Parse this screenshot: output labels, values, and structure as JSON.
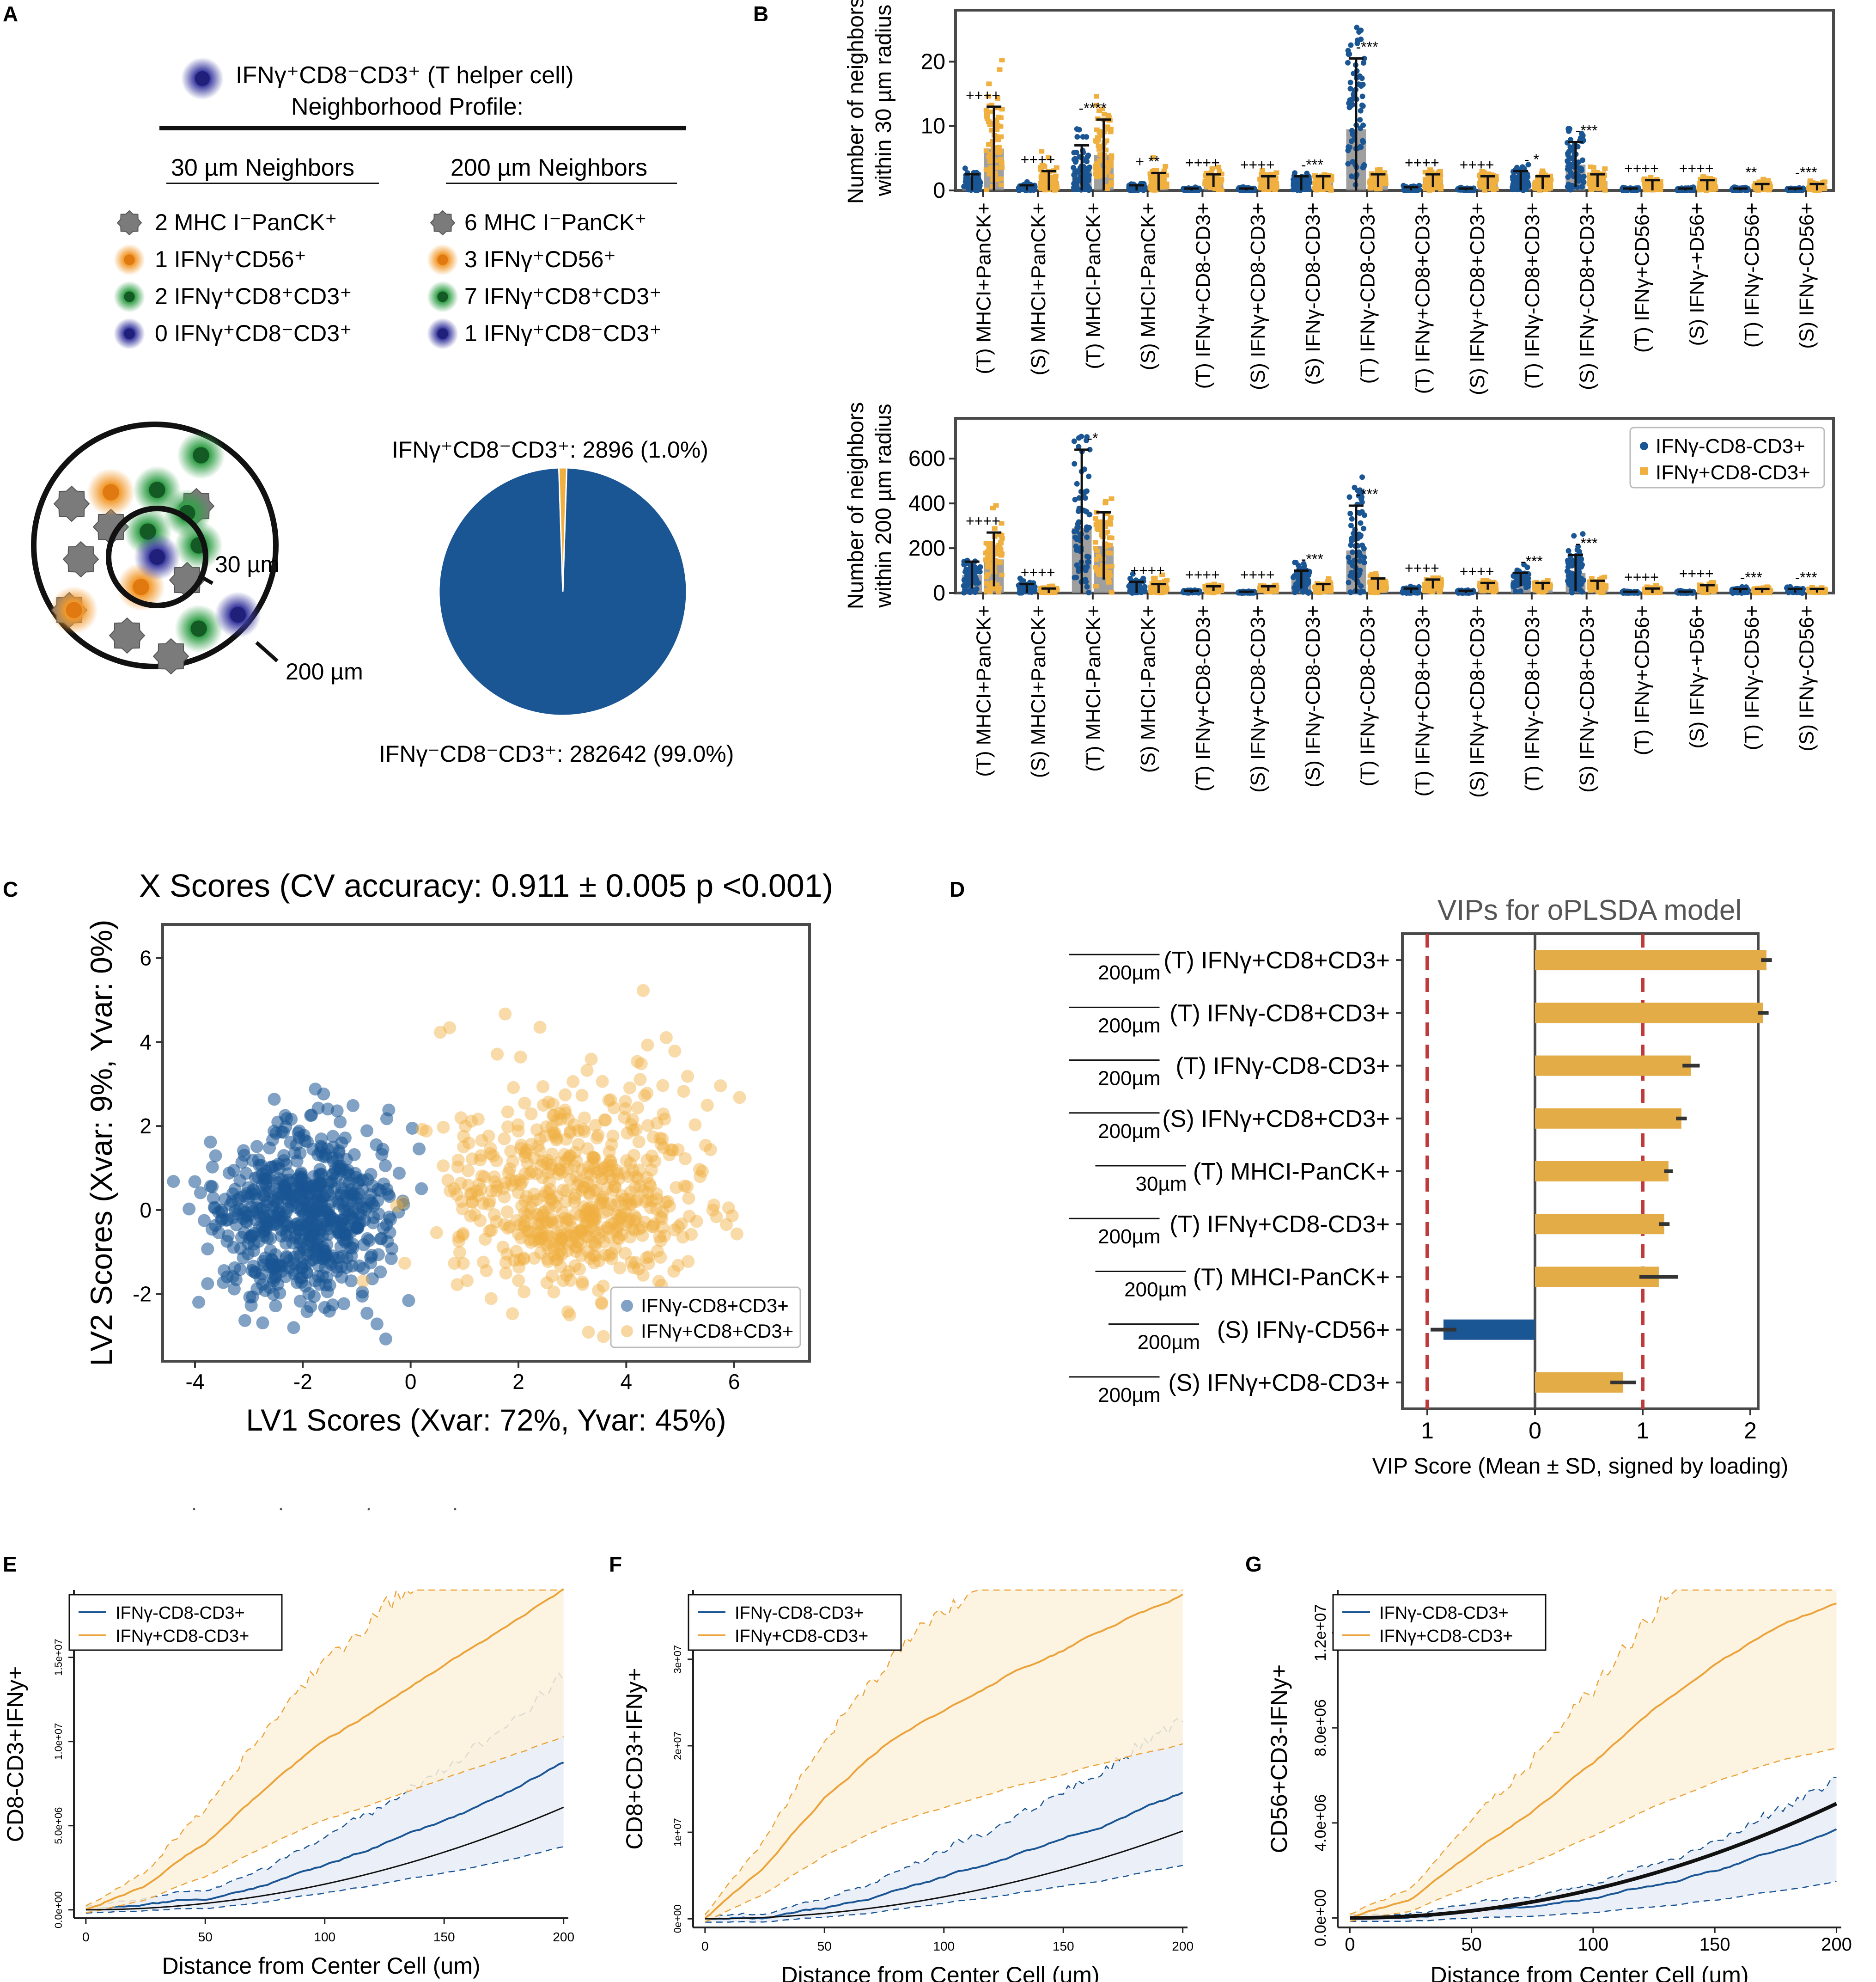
{
  "colors": {
    "blue": "#1a5594",
    "orange": "#f0b040",
    "cell_gray": "#7a7a7a",
    "cell_orange": "#f29a2e",
    "cell_green": "#34a04a",
    "cell_purple": "#3a3aa0",
    "red_dash": "#c0393b",
    "frame": "#4a4a4a",
    "bar_gray": "#8e8e8e"
  },
  "panel_letters": [
    "A",
    "B",
    "C",
    "D",
    "E",
    "F",
    "G"
  ],
  "panel_A": {
    "title_line1": "IFNγ⁺CD8⁻CD3⁺ (T helper cell)",
    "title_line2": "Neighborhood Profile:",
    "col1_header": "30 µm Neighbors",
    "col2_header": "200 µm Neighbors",
    "col1_items": [
      "2 MHC I⁻PanCK⁺",
      "1 IFNγ⁺CD56⁺",
      "2 IFNγ⁺CD8⁺CD3⁺",
      "0 IFNγ⁺CD8⁻CD3⁺"
    ],
    "col2_items": [
      "6 MHC I⁻PanCK⁺",
      "3 IFNγ⁺CD56⁺",
      "7 IFNγ⁺CD8⁺CD3⁺",
      "1 IFNγ⁺CD8⁻CD3⁺"
    ],
    "icons": [
      "gray-cell-icon",
      "orange-cell-icon",
      "green-cell-icon",
      "purple-cell-icon"
    ],
    "radius_inner_label": "30 µm",
    "radius_outer_label": "200 µm",
    "pie_label_top": "IFNγ⁺CD8⁻CD3⁺: 2896 (1.0%)",
    "pie_label_bottom": "IFNγ⁻CD8⁻CD3⁺: 282642 (99.0%)",
    "pie_values": [
      2896,
      282642
    ]
  },
  "chart_data": [
    {
      "type": "bar",
      "panel": "B-top",
      "ylabel": "Number of neighbors within 30 µm radius",
      "ylim": [
        0,
        28
      ],
      "yticks": [
        "0",
        "10",
        "20"
      ],
      "categories": [
        "(T) MHCI+PanCK+",
        "(S) MHCI+PanCK+",
        "(T) MHCI-PanCK+",
        "(S) MHCI-PanCK+",
        "(T) IFNγ+CD8-CD3+",
        "(S) IFNγ+CD8-CD3+",
        "(S) IFNγ-CD8-CD3+",
        "(T) IFNγ-CD8-CD3+",
        "(T) IFNγ+CD8+CD3+",
        "(S) IFNγ+CD8+CD3+",
        "(T) IFNγ-CD8+CD3+",
        "(S) IFNγ-CD8+CD3+",
        "(T) IFNγ+CD56+",
        "(S) IFNγ-+D56+",
        "(T) IFNγ-CD56+",
        "(S) IFNγ-CD56+"
      ],
      "series": [
        {
          "name": "IFNγ-CD8-CD3+",
          "values": [
            1,
            0.3,
            3,
            0.3,
            0.1,
            0.1,
            1,
            9.5,
            0.2,
            0.1,
            1.5,
            4,
            0.1,
            0.1,
            0.1,
            0.1
          ],
          "sd": [
            1.5,
            0.5,
            4,
            0.5,
            0.2,
            0.2,
            1.2,
            11,
            0.3,
            0.2,
            1.5,
            3.5,
            0.2,
            0.2,
            0.2,
            0.2
          ]
        },
        {
          "name": "IFNγ+CD8-CD3+",
          "values": [
            6.5,
            1.5,
            5.5,
            1.2,
            1.5,
            1.2,
            1.2,
            1.5,
            1.5,
            1.2,
            1.2,
            1.5,
            0.8,
            0.8,
            0.5,
            0.5
          ],
          "sd": [
            6.5,
            1.5,
            5.5,
            1.5,
            1,
            1,
            1,
            1,
            1,
            1,
            1,
            1,
            0.8,
            0.8,
            0.5,
            0.5
          ]
        }
      ],
      "annotations": [
        "++++",
        "++++",
        "-****",
        "+ **",
        "++++",
        "++++",
        "-***",
        "-***",
        "++++",
        "++++",
        "- *",
        "-***",
        "++++",
        "++++",
        "**",
        "-***"
      ]
    },
    {
      "type": "bar",
      "panel": "B-bottom",
      "ylabel": "Number of neighbors within 200 µm radius",
      "ylim": [
        0,
        780
      ],
      "yticks": [
        "0",
        "200",
        "400",
        "600"
      ],
      "legend": "top-right",
      "categories": [
        "(T) MHCI+PanCK+",
        "(S) MHCI+PanCK+",
        "(T) MHCI-PanCK+",
        "(S) MHCI-PanCK+",
        "(T) IFNγ+CD8-CD3+",
        "(S) IFNγ+CD8-CD3+",
        "(S) IFNγ-CD8-CD3+",
        "(T) IFNγ-CD8-CD3+",
        "(T) IFNγ+CD8+CD3+",
        "(S) IFNγ+CD8+CD3+",
        "(T) IFNγ-CD8+CD3+",
        "(S) IFNγ-CD8+CD3+",
        "(T) IFNγ+CD56+",
        "(S) IFNγ-+D56+",
        "(T) IFNγ-CD56+",
        "(S) IFNγ-CD56+"
      ],
      "series": [
        {
          "name": "IFNγ-CD8-CD3+",
          "values": [
            80,
            20,
            290,
            20,
            5,
            3,
            60,
            190,
            10,
            5,
            60,
            90,
            3,
            3,
            10,
            10
          ],
          "sd": [
            60,
            20,
            350,
            30,
            5,
            3,
            40,
            200,
            10,
            5,
            30,
            80,
            3,
            3,
            8,
            8
          ]
        },
        {
          "name": "IFNγ+CD8-CD3+",
          "values": [
            150,
            10,
            210,
            20,
            20,
            20,
            25,
            40,
            40,
            30,
            30,
            35,
            10,
            20,
            10,
            10
          ],
          "sd": [
            120,
            10,
            150,
            20,
            10,
            10,
            15,
            25,
            20,
            15,
            15,
            20,
            10,
            15,
            8,
            8
          ]
        }
      ],
      "annotations": [
        "++++",
        "++++",
        "-*",
        "++++",
        "++++",
        "++++",
        "-***",
        "-***",
        "++++",
        "++++",
        "-***",
        "-***",
        "++++",
        "++++",
        "-***",
        "-***"
      ]
    },
    {
      "type": "scatter",
      "panel": "C",
      "title": "X Scores (CV accuracy: 0.911 ± 0.005 p <0.001)",
      "xlabel": "LV1 Scores (Xvar: 72%, Yvar: 45%)",
      "ylabel": "LV2 Scores (Xvar: 9%, Yvar: 0%)",
      "xlim": [
        -4.6,
        7.4
      ],
      "ylim": [
        -3.6,
        6.8
      ],
      "xticks": [
        "-4",
        "-2",
        "0",
        "2",
        "4",
        "6"
      ],
      "yticks": [
        "-2",
        "0",
        "2",
        "4",
        "6"
      ],
      "legend": "bottom-right",
      "series": [
        {
          "name": "IFNγ-CD8+CD3+",
          "center": [
            -2.0,
            -0.1
          ],
          "spread": [
            1.1,
            1.2
          ],
          "n": 640
        },
        {
          "name": "IFNγ+CD8+CD3+",
          "center": [
            3.1,
            0.1
          ],
          "spread": [
            1.6,
            1.4
          ],
          "n": 600
        }
      ]
    },
    {
      "type": "bar",
      "panel": "D",
      "title": "VIPs for oPLSDA model",
      "xlabel": "VIP Score (Mean ± SD, signed by loading)",
      "xticks": [
        "1",
        "0",
        "1",
        "2"
      ],
      "threshold_lines": [
        -1,
        1
      ],
      "categories": [
        {
          "scale": "200µm",
          "label": "(T) IFNγ+CD8+CD3+"
        },
        {
          "scale": "200µm",
          "label": "(T) IFNγ-CD8+CD3+"
        },
        {
          "scale": "200µm",
          "label": "(T) IFNγ-CD8-CD3+"
        },
        {
          "scale": "200µm",
          "label": "(S) IFNγ+CD8+CD3+"
        },
        {
          "scale": "30µm",
          "label": "(T) MHCI-PanCK+"
        },
        {
          "scale": "200µm",
          "label": "(T) IFNγ+CD8-CD3+"
        },
        {
          "scale": "200µm",
          "label": "(T) MHCI-PanCK+"
        },
        {
          "scale": "200µm",
          "label": "(S) IFNγ-CD56+"
        },
        {
          "scale": "200µm",
          "label": "(S) IFNγ+CD8-CD3+"
        }
      ],
      "values": [
        2.15,
        2.12,
        1.45,
        1.36,
        1.24,
        1.2,
        1.15,
        -0.85,
        0.82
      ],
      "sd": [
        0.05,
        0.05,
        0.08,
        0.05,
        0.04,
        0.05,
        0.18,
        0.12,
        0.12
      ]
    },
    {
      "type": "line",
      "panel": "E",
      "xlabel": "Distance from Center Cell (um)",
      "ylabel": "CD8-CD3+IFNy+",
      "xlim": [
        -5,
        202
      ],
      "ylim": [
        -500000,
        19000000
      ],
      "xticks": [
        "0",
        "50",
        "100",
        "150",
        "200"
      ],
      "yticks": [
        "0.0e+00",
        "5.0e+06",
        "1.0e+07",
        "1.5e+07"
      ],
      "legend": "top-left",
      "series": [
        {
          "name": "IFNγ-CD8-CD3+",
          "x": [
            0,
            25,
            50,
            75,
            100,
            125,
            150,
            175,
            200
          ],
          "y": [
            0,
            300000,
            700000,
            1500000,
            2600000,
            3900000,
            5200000,
            6800000,
            8700000
          ]
        },
        {
          "name": "IFNγ+CD8-CD3+",
          "x": [
            0,
            25,
            50,
            75,
            100,
            125,
            150,
            175,
            200
          ],
          "y": [
            0,
            1500000,
            4000000,
            7200000,
            10000000,
            12200000,
            14500000,
            16800000,
            19000000
          ]
        }
      ]
    },
    {
      "type": "line",
      "panel": "F",
      "xlabel": "Distance from Center Cell (um)",
      "ylabel": "CD8+CD3+IFNy+",
      "xlim": [
        -5,
        202
      ],
      "ylim": [
        -1000000,
        38000000
      ],
      "xticks": [
        "0",
        "50",
        "100",
        "150",
        "200"
      ],
      "yticks": [
        "0e+00",
        "1e+07",
        "2e+07",
        "3e+07"
      ],
      "legend": "top-left",
      "series": [
        {
          "name": "IFNγ-CD8-CD3+",
          "x": [
            0,
            25,
            50,
            75,
            100,
            125,
            150,
            175,
            200
          ],
          "y": [
            0,
            200000,
            1200000,
            2800000,
            4800000,
            7000000,
            9300000,
            11800000,
            14500000
          ]
        },
        {
          "name": "IFNγ+CD8-CD3+",
          "x": [
            0,
            25,
            50,
            75,
            100,
            125,
            150,
            175,
            200
          ],
          "y": [
            0,
            6000000,
            14000000,
            20000000,
            24000000,
            28000000,
            31000000,
            34500000,
            37500000
          ]
        }
      ]
    },
    {
      "type": "line",
      "panel": "G",
      "xlabel": "Distance from Center Cell (um)",
      "ylabel": "CD56+CD3-IFNy+",
      "xlim": [
        -5,
        202
      ],
      "ylim": [
        -400000,
        13800000
      ],
      "xticks": [
        "0",
        "50",
        "100",
        "150",
        "200"
      ],
      "yticks": [
        "0.0e+00",
        "4.0e+06",
        "8.0e+06",
        "1.2e+07"
      ],
      "legend": "top-left",
      "series": [
        {
          "name": "IFNγ-CD8-CD3+",
          "x": [
            0,
            25,
            50,
            75,
            100,
            125,
            150,
            175,
            200
          ],
          "y": [
            0,
            50000,
            250000,
            500000,
            900000,
            1400000,
            2000000,
            2800000,
            3700000
          ]
        },
        {
          "name": "IFNγ+CD8-CD3+",
          "x": [
            0,
            25,
            50,
            75,
            100,
            125,
            150,
            175,
            200
          ],
          "y": [
            0,
            700000,
            2600000,
            4500000,
            6500000,
            8800000,
            10600000,
            12200000,
            13200000
          ]
        }
      ]
    }
  ]
}
